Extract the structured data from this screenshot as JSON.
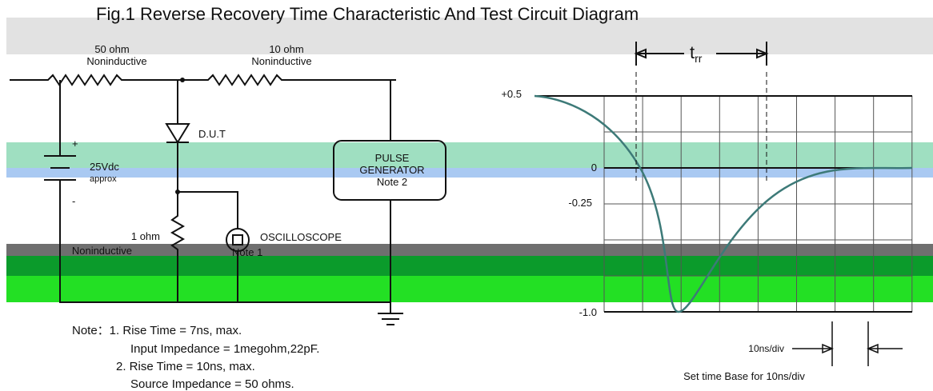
{
  "title": "Fig.1  Reverse Recovery Time Characteristic And Test Circuit Diagram",
  "circuit": {
    "resistors": [
      {
        "value": "50 ohm",
        "type": "Noninductive"
      },
      {
        "value": "10 ohm",
        "type": "Noninductive"
      },
      {
        "value": "1 ohm",
        "type": "Noninductive"
      }
    ],
    "dut": "D.U.T",
    "supply": {
      "plus": "+",
      "voltage": "25Vdc",
      "approx": "approx",
      "minus": "-"
    },
    "pulse_generator": [
      "PULSE",
      "GENERATOR",
      "Note 2"
    ],
    "oscilloscope": {
      "label": "OSCILLOSCOPE",
      "note": "Note 1"
    }
  },
  "waveform": {
    "trr": {
      "t": "t",
      "sub": "rr"
    },
    "levels": [
      "+0.5",
      "0",
      "-0.25",
      "-1.0"
    ],
    "timebase": "10ns/div",
    "caption": "Set time Base for 10ns/div"
  },
  "notes": [
    "Note：1. Rise Time = 7ns, max.",
    "Input Impedance = 1megohm,22pF.",
    "2. Rise Time = 10ns, max.",
    "Source Impedance = 50 ohms."
  ]
}
